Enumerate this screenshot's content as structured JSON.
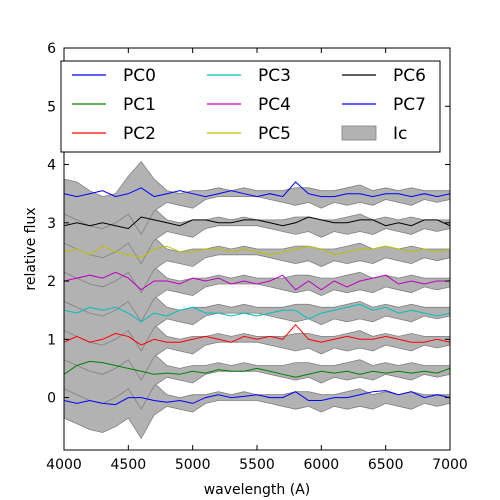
{
  "chart_data": {
    "type": "line",
    "xlabel": "wavelength (A)",
    "ylabel": "relative flux",
    "xlim": [
      4000,
      7000
    ],
    "ylim": [
      -0.9,
      6.0
    ],
    "xticks": [
      "4000",
      "4500",
      "5000",
      "5500",
      "6000",
      "6500",
      "7000"
    ],
    "yticks": [
      "0",
      "1",
      "2",
      "3",
      "4",
      "5",
      "6"
    ],
    "legend_position": "top",
    "band": {
      "name": "Ic",
      "color": "#b2b2b2",
      "x": [
        4000,
        4100,
        4200,
        4300,
        4400,
        4500,
        4600,
        4700,
        4800,
        4900,
        5000,
        5100,
        5200,
        5300,
        5400,
        5500,
        5600,
        5700,
        5800,
        5900,
        6000,
        6100,
        6200,
        6300,
        6400,
        6500,
        6600,
        6700,
        6800,
        6900,
        7000
      ],
      "offsets": [
        0,
        0.5,
        1,
        1.5,
        2,
        2.5,
        3,
        3.5
      ],
      "lower": [
        -0.35,
        -0.45,
        -0.55,
        -0.6,
        -0.5,
        -0.35,
        -0.7,
        -0.3,
        -0.15,
        -0.2,
        -0.25,
        -0.1,
        -0.05,
        -0.05,
        -0.05,
        -0.05,
        -0.1,
        -0.15,
        -0.2,
        -0.15,
        -0.25,
        -0.15,
        -0.2,
        -0.15,
        -0.2,
        -0.1,
        -0.15,
        -0.2,
        -0.1,
        -0.15,
        -0.1
      ],
      "upper": [
        0.25,
        0.2,
        0.05,
        -0.05,
        0.0,
        0.3,
        0.55,
        0.25,
        0.05,
        0.0,
        0.05,
        0.05,
        0.1,
        0.05,
        0.1,
        0.05,
        0.05,
        0.05,
        0.1,
        0.1,
        0.05,
        0.05,
        0.1,
        0.15,
        0.05,
        0.1,
        0.05,
        0.1,
        0.05,
        0.05,
        0.05
      ]
    },
    "series": [
      {
        "name": "PC0",
        "color": "#0000ff",
        "x": [
          4000,
          4100,
          4200,
          4300,
          4400,
          4500,
          4600,
          4700,
          4800,
          4900,
          5000,
          5100,
          5200,
          5300,
          5400,
          5500,
          5600,
          5700,
          5800,
          5900,
          6000,
          6100,
          6200,
          6300,
          6400,
          6500,
          6600,
          6700,
          6800,
          6900,
          7000
        ],
        "y": [
          -0.05,
          -0.1,
          -0.05,
          -0.1,
          -0.12,
          0.0,
          0.0,
          -0.05,
          -0.08,
          -0.05,
          -0.1,
          0.0,
          0.05,
          0.0,
          0.02,
          0.05,
          0.0,
          0.0,
          0.1,
          -0.05,
          -0.05,
          0.0,
          0.0,
          0.05,
          0.1,
          0.12,
          0.05,
          0.1,
          0.0,
          0.05,
          0.0
        ]
      },
      {
        "name": "PC1",
        "color": "#008000",
        "x": [
          4000,
          4100,
          4200,
          4300,
          4400,
          4500,
          4600,
          4700,
          4800,
          4900,
          5000,
          5100,
          5200,
          5300,
          5400,
          5500,
          5600,
          5700,
          5800,
          5900,
          6000,
          6100,
          6200,
          6300,
          6400,
          6500,
          6600,
          6700,
          6800,
          6900,
          7000
        ],
        "y": [
          0.4,
          0.55,
          0.62,
          0.6,
          0.55,
          0.5,
          0.45,
          0.4,
          0.42,
          0.4,
          0.45,
          0.42,
          0.48,
          0.45,
          0.45,
          0.5,
          0.45,
          0.4,
          0.35,
          0.4,
          0.45,
          0.42,
          0.45,
          0.4,
          0.45,
          0.42,
          0.45,
          0.42,
          0.45,
          0.42,
          0.5
        ]
      },
      {
        "name": "PC2",
        "color": "#ff0000",
        "x": [
          4000,
          4100,
          4200,
          4300,
          4400,
          4500,
          4600,
          4700,
          4800,
          4900,
          5000,
          5100,
          5200,
          5300,
          5400,
          5500,
          5600,
          5700,
          5800,
          5900,
          6000,
          6100,
          6200,
          6300,
          6400,
          6500,
          6600,
          6700,
          6800,
          6900,
          7000
        ],
        "y": [
          0.95,
          1.05,
          0.95,
          1.0,
          1.1,
          1.05,
          0.9,
          1.0,
          0.95,
          0.95,
          1.0,
          1.05,
          1.0,
          0.95,
          1.05,
          1.0,
          1.05,
          1.0,
          1.25,
          1.0,
          0.95,
          1.0,
          1.05,
          1.0,
          1.0,
          1.05,
          1.0,
          0.95,
          0.95,
          1.0,
          0.95
        ]
      },
      {
        "name": "PC3",
        "color": "#00bfbf",
        "x": [
          4000,
          4100,
          4200,
          4300,
          4400,
          4500,
          4600,
          4700,
          4800,
          4900,
          5000,
          5100,
          5200,
          5300,
          5400,
          5500,
          5600,
          5700,
          5800,
          5900,
          6000,
          6100,
          6200,
          6300,
          6400,
          6500,
          6600,
          6700,
          6800,
          6900,
          7000
        ],
        "y": [
          1.5,
          1.45,
          1.55,
          1.5,
          1.55,
          1.45,
          1.3,
          1.45,
          1.4,
          1.5,
          1.55,
          1.45,
          1.45,
          1.4,
          1.45,
          1.4,
          1.45,
          1.5,
          1.5,
          1.35,
          1.45,
          1.5,
          1.55,
          1.6,
          1.5,
          1.55,
          1.45,
          1.5,
          1.45,
          1.4,
          1.45
        ]
      },
      {
        "name": "PC4",
        "color": "#bf00bf",
        "x": [
          4000,
          4100,
          4200,
          4300,
          4400,
          4500,
          4600,
          4700,
          4800,
          4900,
          5000,
          5100,
          5200,
          5300,
          5400,
          5500,
          5600,
          5700,
          5800,
          5900,
          6000,
          6100,
          6200,
          6300,
          6400,
          6500,
          6600,
          6700,
          6800,
          6900,
          7000
        ],
        "y": [
          2.0,
          2.05,
          2.1,
          2.05,
          2.15,
          2.05,
          1.85,
          2.0,
          2.0,
          1.95,
          2.05,
          2.0,
          2.05,
          1.95,
          2.0,
          1.95,
          2.0,
          2.1,
          1.85,
          2.0,
          1.85,
          2.0,
          1.9,
          2.0,
          2.05,
          2.1,
          1.95,
          2.0,
          1.95,
          2.0,
          2.0
        ]
      },
      {
        "name": "PC5",
        "color": "#bfbf00",
        "x": [
          4000,
          4100,
          4200,
          4300,
          4400,
          4500,
          4600,
          4700,
          4800,
          4900,
          5000,
          5100,
          5200,
          5300,
          5400,
          5500,
          5600,
          5700,
          5800,
          5900,
          6000,
          6100,
          6200,
          6300,
          6400,
          6500,
          6600,
          6700,
          6800,
          6900,
          7000
        ],
        "y": [
          2.5,
          2.55,
          2.45,
          2.6,
          2.5,
          2.45,
          2.4,
          2.55,
          2.6,
          2.5,
          2.5,
          2.55,
          2.55,
          2.5,
          2.55,
          2.5,
          2.45,
          2.5,
          2.55,
          2.6,
          2.55,
          2.45,
          2.5,
          2.55,
          2.55,
          2.6,
          2.55,
          2.5,
          2.55,
          2.5,
          2.55
        ]
      },
      {
        "name": "PC6",
        "color": "#000000",
        "x": [
          4000,
          4100,
          4200,
          4300,
          4400,
          4500,
          4600,
          4700,
          4800,
          4900,
          5000,
          5100,
          5200,
          5300,
          5400,
          5500,
          5600,
          5700,
          5800,
          5900,
          6000,
          6100,
          6200,
          6300,
          6400,
          6500,
          6600,
          6700,
          6800,
          6900,
          7000
        ],
        "y": [
          2.95,
          3.0,
          2.95,
          3.0,
          2.95,
          2.9,
          3.1,
          3.05,
          3.0,
          2.95,
          3.05,
          3.05,
          3.0,
          3.0,
          3.05,
          3.05,
          3.0,
          2.95,
          3.0,
          3.1,
          3.05,
          3.0,
          3.0,
          3.05,
          3.05,
          2.95,
          3.0,
          2.95,
          3.05,
          3.05,
          2.95
        ]
      },
      {
        "name": "PC7",
        "color": "#0000ff",
        "x": [
          4000,
          4100,
          4200,
          4300,
          4400,
          4500,
          4600,
          4700,
          4800,
          4900,
          5000,
          5100,
          5200,
          5300,
          5400,
          5500,
          5600,
          5700,
          5800,
          5900,
          6000,
          6100,
          6200,
          6300,
          6400,
          6500,
          6600,
          6700,
          6800,
          6900,
          7000
        ],
        "y": [
          3.5,
          3.45,
          3.5,
          3.55,
          3.45,
          3.5,
          3.6,
          3.45,
          3.5,
          3.55,
          3.5,
          3.45,
          3.5,
          3.55,
          3.5,
          3.45,
          3.5,
          3.45,
          3.7,
          3.5,
          3.45,
          3.45,
          3.5,
          3.5,
          3.45,
          3.5,
          3.5,
          3.45,
          3.5,
          3.45,
          3.5
        ]
      }
    ]
  }
}
